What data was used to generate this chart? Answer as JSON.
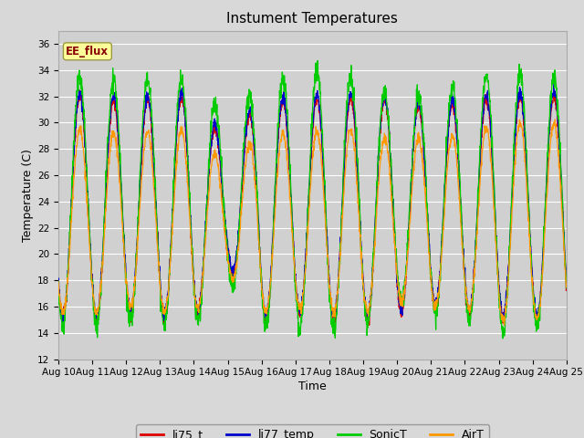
{
  "title": "Instument Temperatures",
  "xlabel": "Time",
  "ylabel": "Temperature (C)",
  "ylim": [
    12,
    37
  ],
  "yticks": [
    12,
    14,
    16,
    18,
    20,
    22,
    24,
    26,
    28,
    30,
    32,
    34,
    36
  ],
  "x_tick_labels": [
    "Aug 10",
    "Aug 11",
    "Aug 12",
    "Aug 13",
    "Aug 14",
    "Aug 15",
    "Aug 16",
    "Aug 17",
    "Aug 18",
    "Aug 19",
    "Aug 20",
    "Aug 21",
    "Aug 22",
    "Aug 23",
    "Aug 24",
    "Aug 25"
  ],
  "legend_entries": [
    "li75_t",
    "li77_temp",
    "SonicT",
    "AirT"
  ],
  "line_colors": [
    "#dd0000",
    "#0000cc",
    "#00cc00",
    "#ff9900"
  ],
  "fig_bg_color": "#d8d8d8",
  "plot_bg_color": "#d0d0d0",
  "annotation_text": "EE_flux",
  "annotation_color": "#880000",
  "annotation_bg": "#ffff99",
  "title_fontsize": 11,
  "axis_label_fontsize": 9,
  "tick_fontsize": 7.5,
  "legend_fontsize": 9,
  "n_points": 2000
}
